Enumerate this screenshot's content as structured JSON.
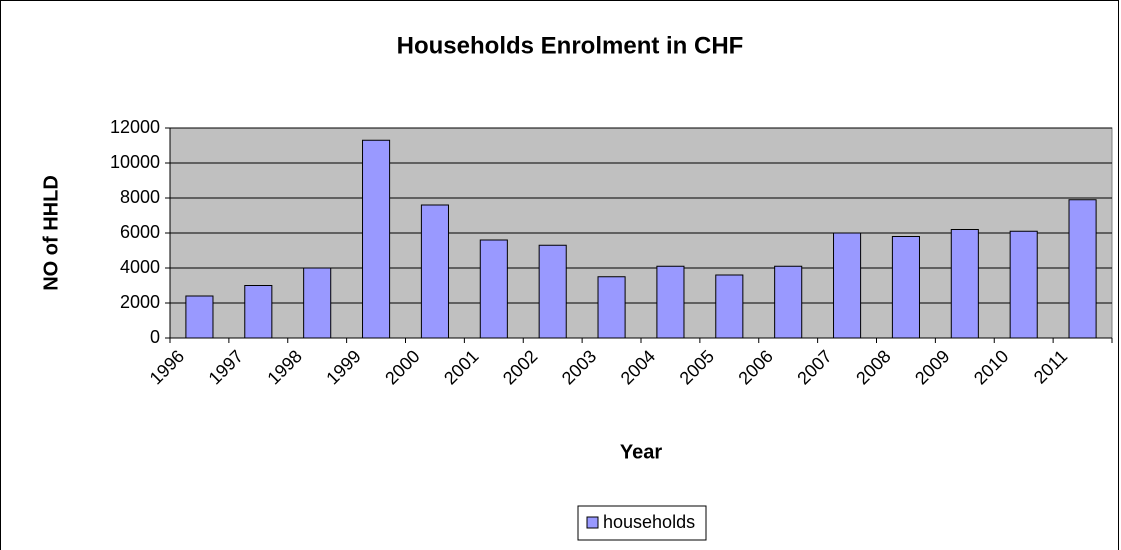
{
  "chart_data": {
    "type": "bar",
    "title": "Households  Enrolment in CHF",
    "x_label": "Year",
    "y_label": "NO of HHLD",
    "categories": [
      "1996",
      "1997",
      "1998",
      "1999",
      "2000",
      "2001",
      "2002",
      "2003",
      "2004",
      "2005",
      "2006",
      "2007",
      "2008",
      "2009",
      "2010",
      "2011"
    ],
    "series": [
      {
        "name": "households",
        "color": "#9999ff",
        "values": [
          2400,
          3000,
          4000,
          11300,
          7600,
          5600,
          5300,
          3500,
          4100,
          3600,
          4100,
          6000,
          5800,
          6200,
          6100,
          7900
        ]
      }
    ],
    "ylim": [
      0,
      12000
    ],
    "yticks": [
      0,
      2000,
      4000,
      6000,
      8000,
      10000,
      12000
    ],
    "grid": true,
    "plot_background": "#c0c0c0",
    "legend": "bottom"
  }
}
